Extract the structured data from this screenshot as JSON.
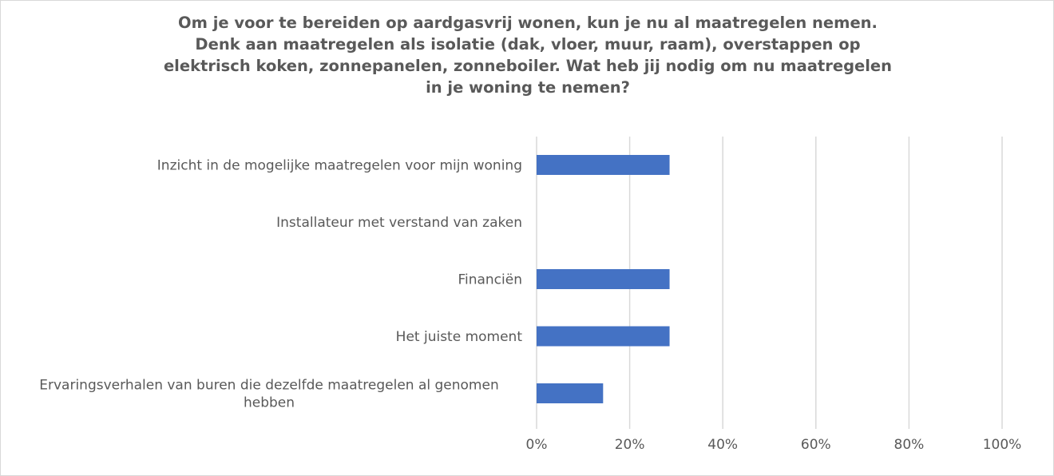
{
  "chart_data": {
    "type": "bar",
    "orientation": "horizontal",
    "title": "Om je voor te bereiden op aardgasvrij wonen, kun je nu al maatregelen nemen.\nDenk aan maatregelen als isolatie (dak, vloer, muur, raam), overstappen op\nelektrisch koken, zonnepanelen, zonneboiler. Wat heb jij nodig om nu maatregelen\nin je woning te nemen?",
    "categories": [
      "Inzicht in de mogelijke maatregelen voor mijn woning",
      "Installateur met verstand van zaken",
      "Financiën",
      "Het juiste moment",
      "Ervaringsverhalen van buren die dezelfde maatregelen al genomen hebben"
    ],
    "category_lines": [
      [
        "Inzicht in de mogelijke maatregelen voor mijn woning"
      ],
      [
        "Installateur met verstand van zaken"
      ],
      [
        "Financiën"
      ],
      [
        "Het juiste moment"
      ],
      [
        "Ervaringsverhalen van buren die dezelfde maatregelen al genomen",
        "hebben"
      ]
    ],
    "values": [
      0.2857,
      0,
      0.2857,
      0.2857,
      0.1429
    ],
    "xlim": [
      0,
      1
    ],
    "xticks": [
      0,
      0.2,
      0.4,
      0.6,
      0.8,
      1.0
    ],
    "xtick_labels": [
      "0%",
      "20%",
      "40%",
      "60%",
      "80%",
      "100%"
    ],
    "grid": "vertical",
    "legend": "none",
    "bar_color": "#4472c4"
  }
}
